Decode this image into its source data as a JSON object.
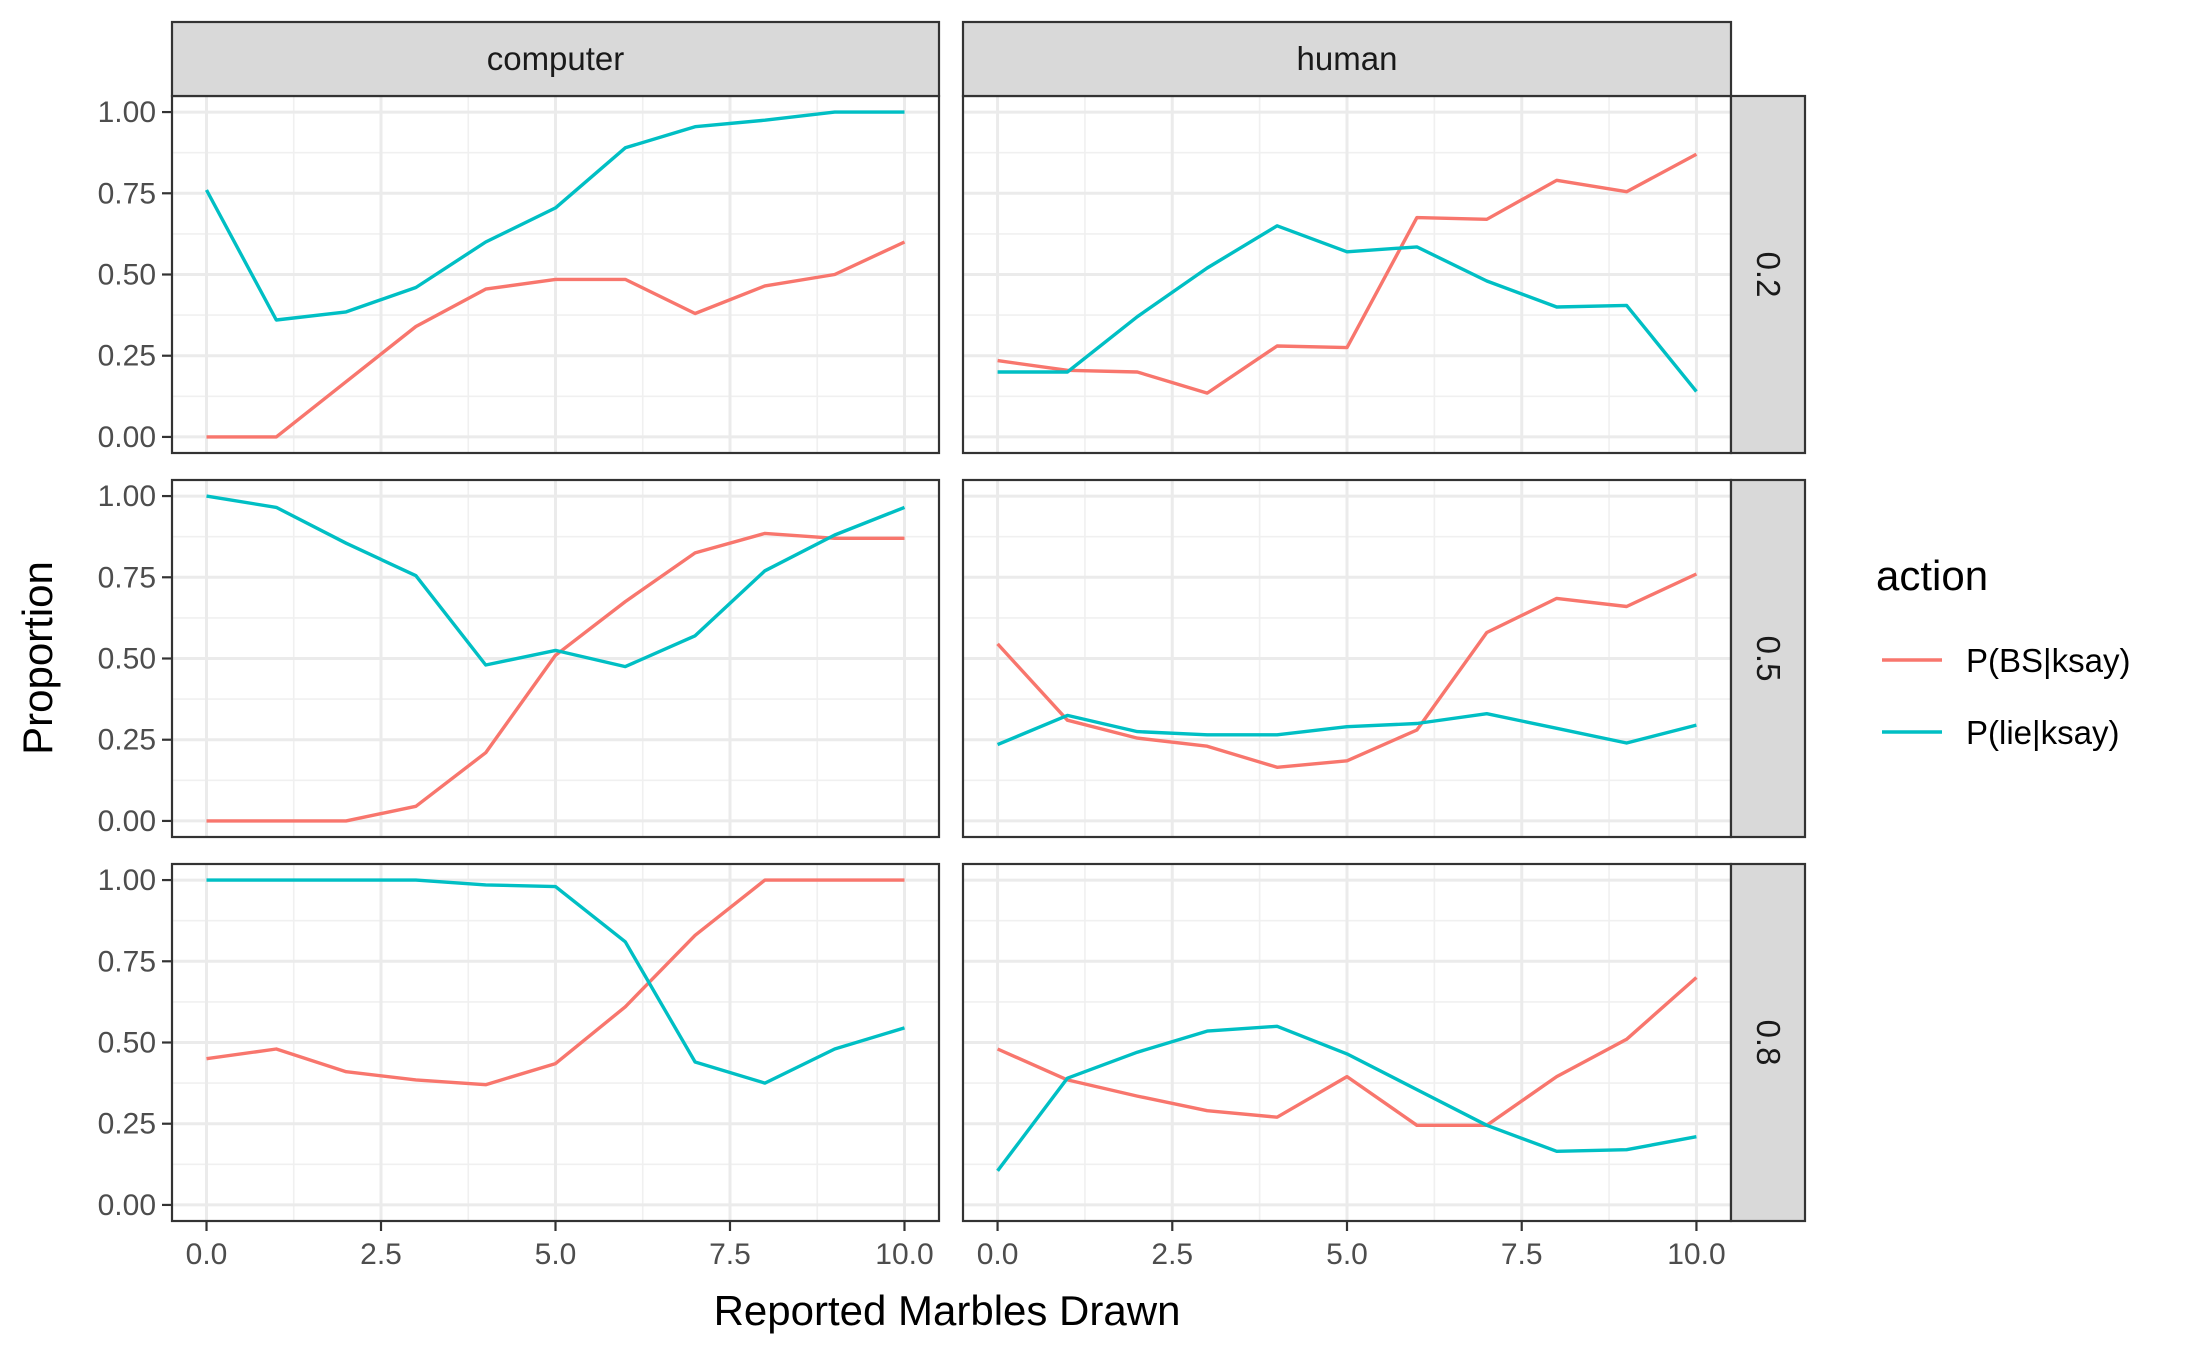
{
  "chart_data": {
    "type": "line",
    "xlabel": "Reported Marbles Drawn",
    "ylabel": "Proportion",
    "xlim": [
      0,
      10
    ],
    "ylim": [
      0,
      1
    ],
    "x_ticks": [
      "0.0",
      "2.5",
      "5.0",
      "7.5",
      "10.0"
    ],
    "y_ticks": [
      "0.00",
      "0.25",
      "0.50",
      "0.75",
      "1.00"
    ],
    "columns": [
      "computer",
      "human"
    ],
    "rows": [
      "0.2",
      "0.5",
      "0.8"
    ],
    "grid": true,
    "legend": {
      "title": "action",
      "position": "right",
      "entries": [
        {
          "name": "P(BS|ksay)",
          "color": "#F8766D"
        },
        {
          "name": "P(lie|ksay)",
          "color": "#00BFC4"
        }
      ]
    },
    "x": [
      0,
      1,
      2,
      3,
      4,
      5,
      6,
      7,
      8,
      9,
      10
    ],
    "panels": [
      {
        "column": "computer",
        "row": "0.2",
        "series": [
          {
            "name": "P(BS|ksay)",
            "values": [
              0.0,
              0.0,
              0.17,
              0.34,
              0.455,
              0.485,
              0.485,
              0.38,
              0.465,
              0.5,
              0.6
            ]
          },
          {
            "name": "P(lie|ksay)",
            "values": [
              0.76,
              0.36,
              0.385,
              0.46,
              0.6,
              0.705,
              0.89,
              0.955,
              0.975,
              1.0,
              1.0
            ]
          }
        ]
      },
      {
        "column": "human",
        "row": "0.2",
        "series": [
          {
            "name": "P(BS|ksay)",
            "values": [
              0.235,
              0.205,
              0.2,
              0.135,
              0.28,
              0.275,
              0.675,
              0.67,
              0.79,
              0.755,
              0.87
            ]
          },
          {
            "name": "P(lie|ksay)",
            "values": [
              0.2,
              0.2,
              0.37,
              0.52,
              0.65,
              0.57,
              0.585,
              0.48,
              0.4,
              0.405,
              0.14
            ]
          }
        ]
      },
      {
        "column": "computer",
        "row": "0.5",
        "series": [
          {
            "name": "P(BS|ksay)",
            "values": [
              0.0,
              0.0,
              0.0,
              0.045,
              0.21,
              0.51,
              0.675,
              0.825,
              0.885,
              0.87,
              0.87
            ]
          },
          {
            "name": "P(lie|ksay)",
            "values": [
              1.0,
              0.965,
              0.855,
              0.755,
              0.48,
              0.525,
              0.475,
              0.57,
              0.77,
              0.88,
              0.965
            ]
          }
        ]
      },
      {
        "column": "human",
        "row": "0.5",
        "series": [
          {
            "name": "P(BS|ksay)",
            "values": [
              0.545,
              0.31,
              0.255,
              0.23,
              0.165,
              0.185,
              0.28,
              0.58,
              0.685,
              0.66,
              0.76
            ]
          },
          {
            "name": "P(lie|ksay)",
            "values": [
              0.235,
              0.325,
              0.275,
              0.265,
              0.265,
              0.29,
              0.3,
              0.33,
              0.285,
              0.24,
              0.295
            ]
          }
        ]
      },
      {
        "column": "computer",
        "row": "0.8",
        "series": [
          {
            "name": "P(BS|ksay)",
            "values": [
              0.45,
              0.48,
              0.41,
              0.385,
              0.37,
              0.435,
              0.61,
              0.83,
              1.0,
              1.0,
              1.0
            ]
          },
          {
            "name": "P(lie|ksay)",
            "values": [
              1.0,
              1.0,
              1.0,
              1.0,
              0.985,
              0.98,
              0.81,
              0.44,
              0.375,
              0.48,
              0.545
            ]
          }
        ]
      },
      {
        "column": "human",
        "row": "0.8",
        "series": [
          {
            "name": "P(BS|ksay)",
            "values": [
              0.48,
              0.385,
              0.335,
              0.29,
              0.27,
              0.395,
              0.245,
              0.245,
              0.395,
              0.51,
              0.7
            ]
          },
          {
            "name": "P(lie|ksay)",
            "values": [
              0.105,
              0.39,
              0.47,
              0.535,
              0.55,
              0.465,
              0.355,
              0.245,
              0.165,
              0.17,
              0.21
            ]
          }
        ]
      }
    ]
  }
}
